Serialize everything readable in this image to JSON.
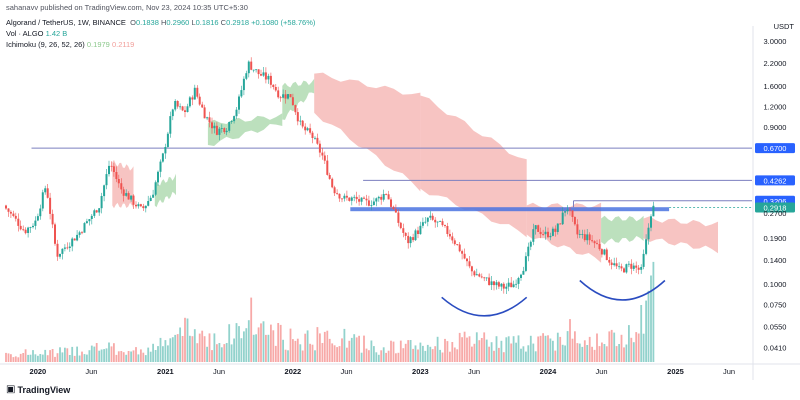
{
  "published": "sahanavv published on TradingView.com, Nov 23, 2024 10:35 UTC+5:30",
  "legend": {
    "symbol": "Algorand / TetherUS, 1W, BINANCE",
    "ohlc": [
      {
        "label": "O",
        "value": "0.1838"
      },
      {
        "label": "H",
        "value": "0.2960"
      },
      {
        "label": "L",
        "value": "0.1816"
      },
      {
        "label": "C",
        "value": "0.2918"
      }
    ],
    "change": "+0.1080 (+58.76%)",
    "volume_label": "Vol · ALGO",
    "volume_value": "1.42 B",
    "ichimoku_label": "Ichimoku (9, 26, 52, 26)",
    "ichimoku_a": "0.1979",
    "ichimoku_b": "0.2119"
  },
  "currency": "USDT",
  "branding": "TradingView",
  "colors": {
    "up": "#26a69a",
    "down": "#ef5350",
    "cloud_bull": "#a5d6a7",
    "cloud_bear": "#f19c99",
    "level_line": "#7b7fbf",
    "support_band": "#4a73e0",
    "arc": "#2a4cc0"
  },
  "chart_data": {
    "type": "candlestick",
    "yscale": "log",
    "ylim": [
      0.03,
      3.5
    ],
    "x_tick_labels": [
      "2020",
      "Jun",
      "2021",
      "Jun",
      "2022",
      "Jun",
      "2023",
      "Jun",
      "2024",
      "Jun",
      "2025",
      "Jun"
    ],
    "y_tick_labels": [
      "3.0000",
      "2.2000",
      "1.6000",
      "1.2000",
      "0.9000",
      "0.6700",
      "0.4262",
      "0.3206",
      "0.2918",
      "0.2700",
      "0.1900",
      "0.1400",
      "0.1000",
      "0.0750",
      "0.0550",
      "0.0410"
    ],
    "price_tags": [
      {
        "value": "0.6700",
        "kind": "level"
      },
      {
        "value": "0.4262",
        "kind": "level"
      },
      {
        "value": "0.3206",
        "kind": "level"
      },
      {
        "value": "0.2918",
        "kind": "last"
      }
    ],
    "levels": [
      0.67,
      0.4262,
      0.3206
    ],
    "last_price": 0.2918,
    "support_zone": 0.285,
    "close_path": [
      [
        "2019-10",
        0.3
      ],
      [
        "2019-12",
        0.21
      ],
      [
        "2020-01",
        0.24
      ],
      [
        "2020-02",
        0.4
      ],
      [
        "2020-03",
        0.15
      ],
      [
        "2020-05",
        0.2
      ],
      [
        "2020-07",
        0.3
      ],
      [
        "2020-08",
        0.55
      ],
      [
        "2020-09",
        0.38
      ],
      [
        "2020-11",
        0.28
      ],
      [
        "2020-12",
        0.35
      ],
      [
        "2021-01",
        0.6
      ],
      [
        "2021-02",
        1.25
      ],
      [
        "2021-03",
        1.1
      ],
      [
        "2021-04",
        1.5
      ],
      [
        "2021-05",
        1.05
      ],
      [
        "2021-06",
        0.85
      ],
      [
        "2021-07",
        0.9
      ],
      [
        "2021-08",
        1.2
      ],
      [
        "2021-09",
        2.2
      ],
      [
        "2021-10",
        1.9
      ],
      [
        "2021-11",
        1.75
      ],
      [
        "2021-12",
        1.4
      ],
      [
        "2022-01",
        1.4
      ],
      [
        "2022-02",
        0.9
      ],
      [
        "2022-03",
        0.8
      ],
      [
        "2022-04",
        0.6
      ],
      [
        "2022-05",
        0.38
      ],
      [
        "2022-06",
        0.33
      ],
      [
        "2022-07",
        0.33
      ],
      [
        "2022-08",
        0.31
      ],
      [
        "2022-09",
        0.32
      ],
      [
        "2022-10",
        0.36
      ],
      [
        "2022-11",
        0.25
      ],
      [
        "2022-12",
        0.18
      ],
      [
        "2023-01",
        0.21
      ],
      [
        "2023-02",
        0.25
      ],
      [
        "2023-03",
        0.23
      ],
      [
        "2023-04",
        0.2
      ],
      [
        "2023-05",
        0.16
      ],
      [
        "2023-06",
        0.12
      ],
      [
        "2023-07",
        0.11
      ],
      [
        "2023-08",
        0.1
      ],
      [
        "2023-09",
        0.095
      ],
      [
        "2023-10",
        0.1
      ],
      [
        "2023-11",
        0.13
      ],
      [
        "2023-12",
        0.22
      ],
      [
        "2024-01",
        0.2
      ],
      [
        "2024-02",
        0.21
      ],
      [
        "2024-03",
        0.3
      ],
      [
        "2024-04",
        0.2
      ],
      [
        "2024-05",
        0.19
      ],
      [
        "2024-06",
        0.17
      ],
      [
        "2024-07",
        0.14
      ],
      [
        "2024-08",
        0.12
      ],
      [
        "2024-09",
        0.13
      ],
      [
        "2024-10",
        0.12
      ],
      [
        "2024-11",
        0.29
      ]
    ],
    "cloud_segments": [
      {
        "trend": "bear",
        "x0": "2020-08",
        "x1": "2020-10",
        "upper": [
          0.55,
          0.5
        ],
        "lower": [
          0.3,
          0.3
        ]
      },
      {
        "trend": "bull",
        "x0": "2020-12",
        "x1": "2021-02",
        "upper": [
          0.4,
          0.45
        ],
        "lower": [
          0.3,
          0.36
        ]
      },
      {
        "trend": "bull",
        "x0": "2021-05",
        "x1": "2021-12",
        "upper": [
          0.95,
          1.05
        ],
        "lower": [
          0.7,
          0.95
        ]
      },
      {
        "trend": "bull",
        "x0": "2021-12",
        "x1": "2022-03",
        "upper": [
          1.6,
          1.7
        ],
        "lower": [
          1.0,
          1.5
        ]
      },
      {
        "trend": "bear",
        "x0": "2022-03",
        "x1": "2023-01",
        "upper": [
          1.9,
          1.4
        ],
        "lower": [
          1.1,
          0.38
        ]
      },
      {
        "trend": "bear",
        "x0": "2023-01",
        "x1": "2023-11",
        "upper": [
          1.4,
          0.55
        ],
        "lower": [
          0.38,
          0.2
        ]
      },
      {
        "trend": "bear",
        "x0": "2023-11",
        "x1": "2024-06",
        "upper": [
          0.3,
          0.3
        ],
        "lower": [
          0.2,
          0.14
        ]
      },
      {
        "trend": "bull",
        "x0": "2024-06",
        "x1": "2024-10",
        "upper": [
          0.25,
          0.25
        ],
        "lower": [
          0.18,
          0.19
        ]
      },
      {
        "trend": "bear",
        "x0": "2024-10",
        "x1": "2025-05",
        "upper": [
          0.25,
          0.23
        ],
        "lower": [
          0.19,
          0.16
        ]
      }
    ],
    "volume_series": [
      [
        "2020-01",
        0.12
      ],
      [
        "2020-04",
        0.15
      ],
      [
        "2020-07",
        0.2
      ],
      [
        "2020-10",
        0.14
      ],
      [
        "2021-01",
        0.25
      ],
      [
        "2021-03",
        0.45
      ],
      [
        "2021-06",
        0.3
      ],
      [
        "2021-09",
        0.5
      ],
      [
        "2022-01",
        0.3
      ],
      [
        "2022-05",
        0.35
      ],
      [
        "2022-09",
        0.2
      ],
      [
        "2023-01",
        0.22
      ],
      [
        "2023-06",
        0.3
      ],
      [
        "2023-10",
        0.25
      ],
      [
        "2024-01",
        0.3
      ],
      [
        "2024-04",
        0.35
      ],
      [
        "2024-08",
        0.3
      ],
      [
        "2024-11",
        1.0
      ]
    ],
    "volume_spikes": [
      [
        "2021-09",
        0.9
      ],
      [
        "2024-03",
        0.6
      ],
      [
        "2024-11",
        1.4
      ]
    ],
    "patterns": [
      {
        "kind": "rounded-bottom",
        "x0": "2023-03",
        "x1": "2023-11",
        "edge_price": 0.083,
        "trough_price": 0.064
      },
      {
        "kind": "rounded-bottom",
        "x0": "2024-04",
        "x1": "2024-12",
        "edge_price": 0.105,
        "trough_price": 0.08
      }
    ]
  }
}
